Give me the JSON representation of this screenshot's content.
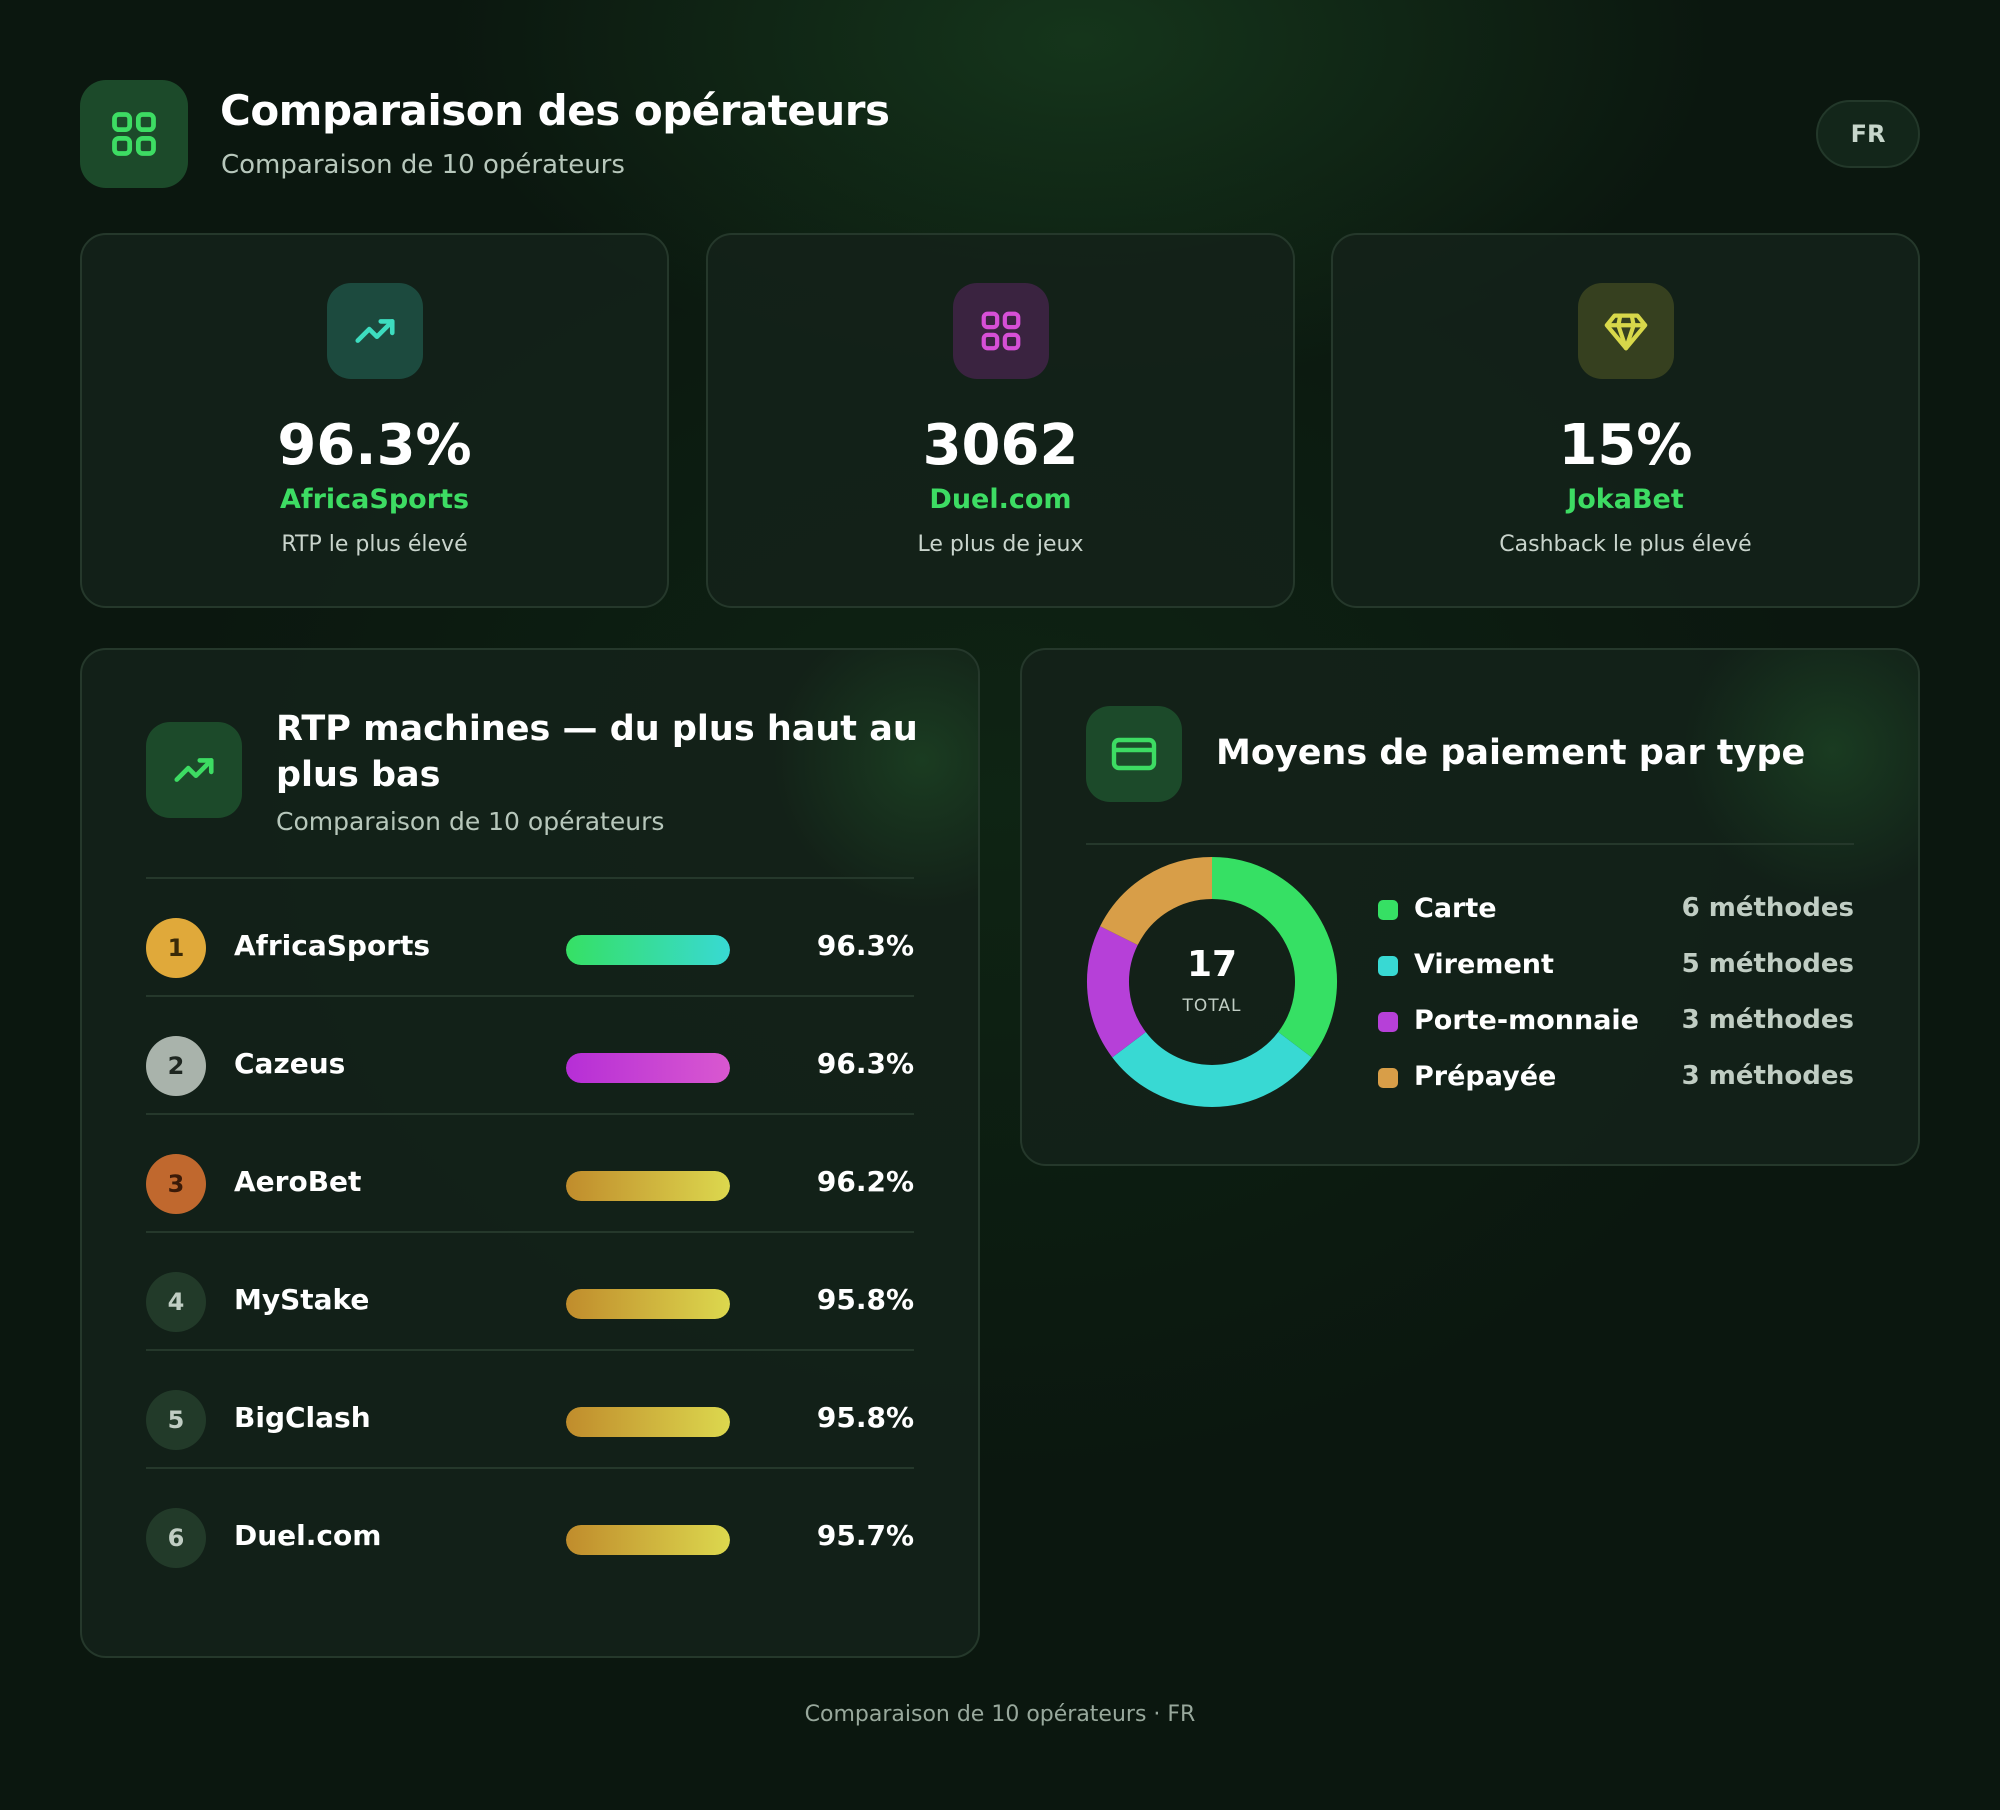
{
  "header": {
    "title": "Comparaison des opérateurs",
    "subtitle": "Comparaison de 10 opérateurs",
    "language": "FR"
  },
  "stats": [
    {
      "value": "96.3%",
      "operator": "AfricaSports",
      "label": "RTP le plus élevé",
      "icon": "trending-up-icon",
      "accent": "#3ddcbf"
    },
    {
      "value": "3062",
      "operator": "Duel.com",
      "label": "Le plus de jeux",
      "icon": "grid-icon",
      "accent": "#d64fd6"
    },
    {
      "value": "15%",
      "operator": "JokaBet",
      "label": "Cashback le plus élevé",
      "icon": "diamond-icon",
      "accent": "#d8d84a"
    }
  ],
  "rtp_panel": {
    "title": "RTP machines — du plus haut au plus bas",
    "subtitle": "Comparaison de 10 opérateurs",
    "rows": [
      {
        "rank": "1",
        "name": "AfricaSports",
        "rtp": "96.3%",
        "fill": 1.0
      },
      {
        "rank": "2",
        "name": "Cazeus",
        "rtp": "96.3%",
        "fill": 1.0
      },
      {
        "rank": "3",
        "name": "AeroBet",
        "rtp": "96.2%",
        "fill": 1.0
      },
      {
        "rank": "4",
        "name": "MyStake",
        "rtp": "95.8%",
        "fill": 1.0
      },
      {
        "rank": "5",
        "name": "BigClash",
        "rtp": "95.8%",
        "fill": 1.0
      },
      {
        "rank": "6",
        "name": "Duel.com",
        "rtp": "95.7%",
        "fill": 1.0
      }
    ]
  },
  "payment_panel": {
    "title": "Moyens de paiement par type",
    "total": "17",
    "total_label": "TOTAL",
    "types": [
      {
        "label": "Carte",
        "count": "6 méthodes",
        "value": 6,
        "color": "#36e064"
      },
      {
        "label": "Virement",
        "count": "5 méthodes",
        "value": 5,
        "color": "#38d9d3"
      },
      {
        "label": "Porte-monnaie",
        "count": "3 méthodes",
        "value": 3,
        "color": "#b640d8"
      },
      {
        "label": "Prépayée",
        "count": "3 méthodes",
        "value": 3,
        "color": "#d89e48"
      }
    ]
  },
  "footer": "Comparaison de 10 opérateurs · FR"
}
